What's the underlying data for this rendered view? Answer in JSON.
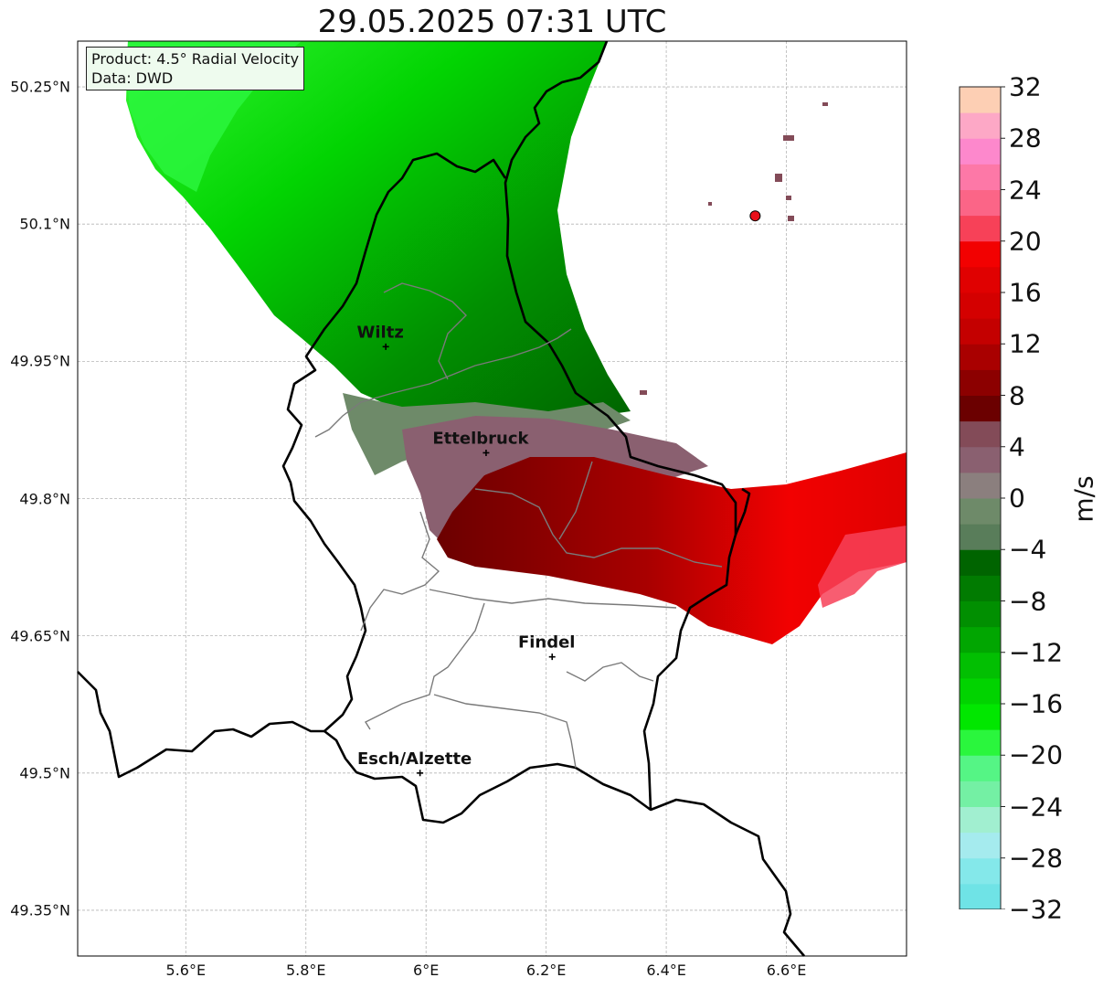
{
  "title": "29.05.2025 07:31 UTC",
  "info": {
    "product": "Product: 4.5° Radial Velocity",
    "source": "Data: DWD"
  },
  "map": {
    "lon_range": [
      5.42,
      6.8
    ],
    "lat_range": [
      49.3,
      50.3
    ],
    "lon_ticks": [
      {
        "value": 5.6,
        "label": "5.6°E"
      },
      {
        "value": 5.8,
        "label": "5.8°E"
      },
      {
        "value": 6.0,
        "label": "6°E"
      },
      {
        "value": 6.2,
        "label": "6.2°E"
      },
      {
        "value": 6.4,
        "label": "6.4°E"
      },
      {
        "value": 6.6,
        "label": "6.6°E"
      }
    ],
    "lat_ticks": [
      {
        "value": 49.35,
        "label": "49.35°N"
      },
      {
        "value": 49.5,
        "label": "49.5°N"
      },
      {
        "value": 49.65,
        "label": "49.65°N"
      },
      {
        "value": 49.8,
        "label": "49.8°N"
      },
      {
        "value": 49.95,
        "label": "49.95°N"
      },
      {
        "value": 50.1,
        "label": "50.1°N"
      },
      {
        "value": 50.25,
        "label": "50.25°N"
      }
    ],
    "grid": true,
    "cities": [
      {
        "name": "Wiltz",
        "lon": 5.933,
        "lat": 49.966
      },
      {
        "name": "Ettelbruck",
        "lon": 6.1,
        "lat": 49.85
      },
      {
        "name": "Findel",
        "lon": 6.21,
        "lat": 49.627
      },
      {
        "name": "Esch/Alzette",
        "lon": 5.99,
        "lat": 49.5
      }
    ],
    "radar_site": {
      "lon": 6.548,
      "lat": 50.109
    }
  },
  "colorbar": {
    "unit": "m/s",
    "range": [
      -32,
      32
    ],
    "step": 2,
    "tick_labels": [
      "32",
      "28",
      "24",
      "20",
      "16",
      "12",
      "8",
      "4",
      "0",
      "−4",
      "−8",
      "−12",
      "−16",
      "−20",
      "−24",
      "−28",
      "−32"
    ],
    "colors": [
      "#6fe3e6",
      "#84e8ea",
      "#a5ebee",
      "#a1efd0",
      "#74f0a4",
      "#55f585",
      "#2af63d",
      "#01e700",
      "#01d300",
      "#02bf02",
      "#01a601",
      "#018f01",
      "#017b01",
      "#006400",
      "#597d5a",
      "#6e8a69",
      "#8b7f7e",
      "#8a6070",
      "#834b58",
      "#6b0000",
      "#8c0000",
      "#a90000",
      "#c40000",
      "#d40000",
      "#e00101",
      "#f20101",
      "#f74158",
      "#fb6587",
      "#fd78a7",
      "#fd88cc",
      "#fda8c6",
      "#fdcfb4"
    ]
  }
}
